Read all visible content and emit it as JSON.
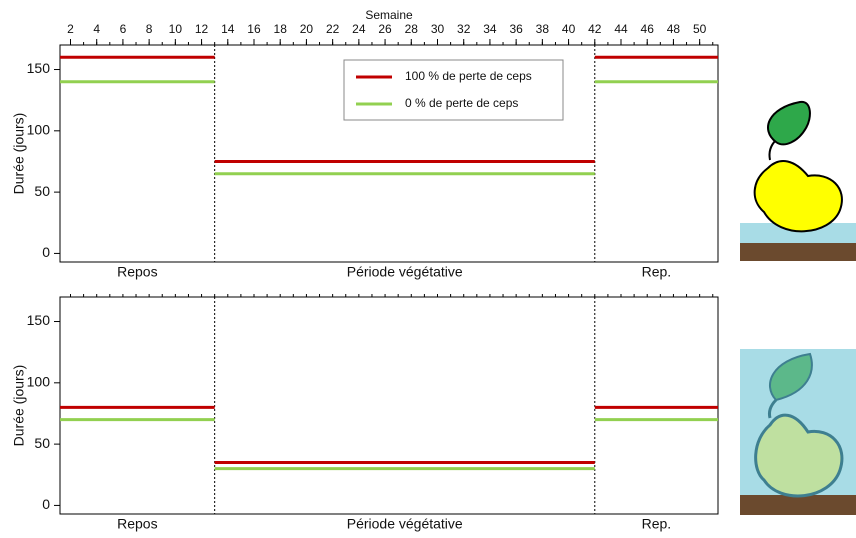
{
  "chart_data": [
    {
      "type": "step",
      "x_label": "Semaine",
      "y_label": "Durée (jours)",
      "xlim": [
        1.2,
        51.4
      ],
      "xticks": [
        2,
        4,
        6,
        8,
        10,
        12,
        14,
        16,
        18,
        20,
        22,
        24,
        26,
        28,
        30,
        32,
        34,
        36,
        38,
        40,
        42,
        44,
        46,
        48,
        50
      ],
      "ylim": [
        -7,
        170
      ],
      "yticks": [
        0,
        50,
        100,
        150
      ],
      "breaks": [
        13,
        42
      ],
      "categories": [
        "Repos",
        "Période végétative",
        "Rep."
      ],
      "legend": "top-center",
      "series": [
        {
          "name": "100 % de perte de ceps",
          "color": "#c00000",
          "values": [
            160,
            75,
            160
          ]
        },
        {
          "name": "0 % de perte de ceps",
          "color": "#92d050",
          "values": [
            140,
            65,
            140
          ]
        }
      ]
    },
    {
      "type": "step",
      "y_label": "Durée (jours)",
      "xlim": [
        1.2,
        51.4
      ],
      "ylim": [
        -7,
        170
      ],
      "yticks": [
        0,
        50,
        100,
        150
      ],
      "breaks": [
        13,
        42
      ],
      "categories": [
        "Repos",
        "Période végétative",
        "Rep."
      ],
      "series": [
        {
          "color": "#c00000",
          "values": [
            80,
            35,
            80
          ]
        },
        {
          "color": "#92d050",
          "values": [
            70,
            30,
            70
          ]
        }
      ]
    }
  ]
}
